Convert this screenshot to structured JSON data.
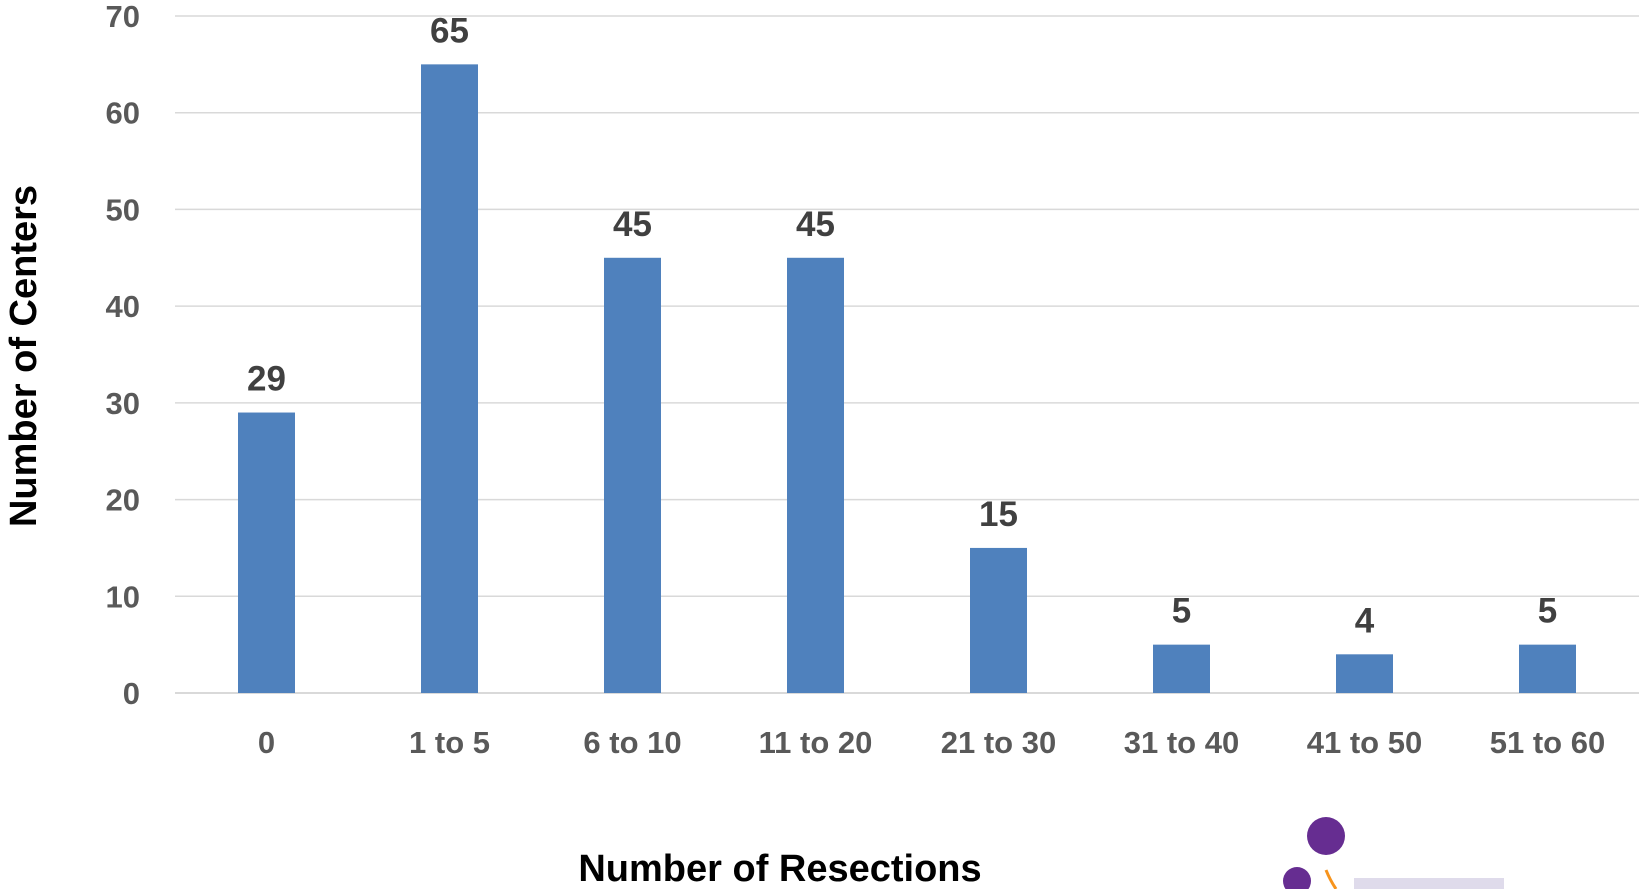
{
  "chart_data": {
    "type": "bar",
    "categories": [
      "0",
      "1 to 5",
      "6 to 10",
      "11 to 20",
      "21 to 30",
      "31 to 40",
      "41 to 50",
      "51 to 60"
    ],
    "values": [
      29,
      65,
      45,
      45,
      15,
      5,
      4,
      5
    ],
    "data_labels": [
      "29",
      "65",
      "45",
      "45",
      "15",
      "5",
      "4",
      "5"
    ],
    "xlabel": "Number of Resections",
    "ylabel": "Number of Centers",
    "ylim": [
      0,
      70
    ],
    "yticks": [
      "0",
      "10",
      "20",
      "30",
      "40",
      "50",
      "60",
      "70"
    ],
    "ytick_values": [
      0,
      10,
      20,
      30,
      40,
      50,
      60,
      70
    ],
    "grid": true,
    "bar_color": "#4f81bd",
    "gridline_color": "#d9d9d9"
  },
  "logo": {
    "colors": [
      "#662d91",
      "#f7941d"
    ]
  }
}
